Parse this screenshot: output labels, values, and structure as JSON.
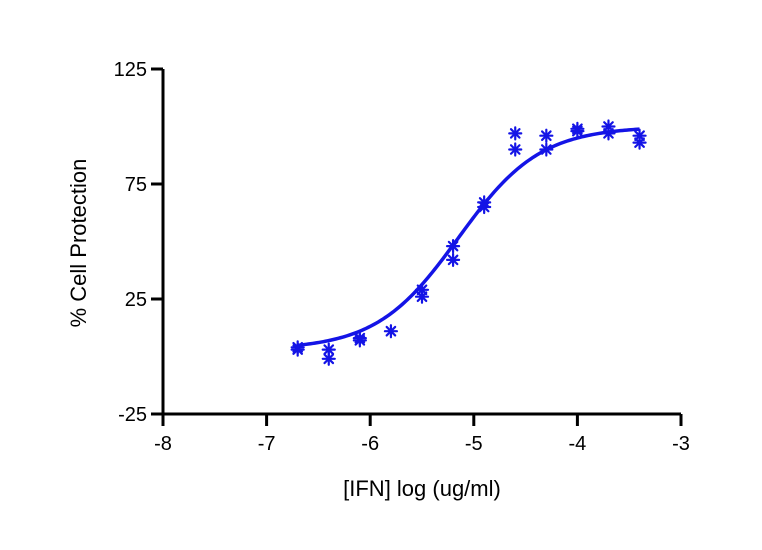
{
  "chart_data": {
    "type": "scatter",
    "title": "",
    "xlabel": "[IFN] log (ug/ml)",
    "ylabel": "% Cell Protection",
    "xlim": [
      -8,
      -3
    ],
    "ylim": [
      -25,
      125
    ],
    "xticks": [
      -8,
      -7,
      -6,
      -5,
      -4,
      -3
    ],
    "yticks": [
      -25,
      25,
      75,
      125
    ],
    "xtick_labels": [
      "-8",
      "-7",
      "-6",
      "-5",
      "-4",
      "-3"
    ],
    "ytick_labels": [
      "-25",
      "25",
      "75",
      "125"
    ],
    "grid": false,
    "legend": "none",
    "color": "#1414e6",
    "points": [
      {
        "x": -6.7,
        "y": 3
      },
      {
        "x": -6.7,
        "y": 4
      },
      {
        "x": -6.4,
        "y": 3
      },
      {
        "x": -6.4,
        "y": -1
      },
      {
        "x": -6.1,
        "y": 7
      },
      {
        "x": -6.1,
        "y": 8
      },
      {
        "x": -5.8,
        "y": 11
      },
      {
        "x": -5.5,
        "y": 26
      },
      {
        "x": -5.5,
        "y": 29
      },
      {
        "x": -5.2,
        "y": 42
      },
      {
        "x": -5.2,
        "y": 48
      },
      {
        "x": -4.9,
        "y": 65
      },
      {
        "x": -4.9,
        "y": 67
      },
      {
        "x": -4.6,
        "y": 90
      },
      {
        "x": -4.6,
        "y": 97
      },
      {
        "x": -4.3,
        "y": 90
      },
      {
        "x": -4.3,
        "y": 96
      },
      {
        "x": -4.0,
        "y": 98
      },
      {
        "x": -4.0,
        "y": 99
      },
      {
        "x": -3.7,
        "y": 97
      },
      {
        "x": -3.7,
        "y": 100
      },
      {
        "x": -3.4,
        "y": 93
      },
      {
        "x": -3.4,
        "y": 96
      }
    ],
    "fit": {
      "model": "four-parameter logistic",
      "bottom": 3,
      "top": 100,
      "log_ec50": -5.15,
      "hill_slope": 1.1,
      "x_range": [
        -6.7,
        -3.4
      ]
    }
  }
}
